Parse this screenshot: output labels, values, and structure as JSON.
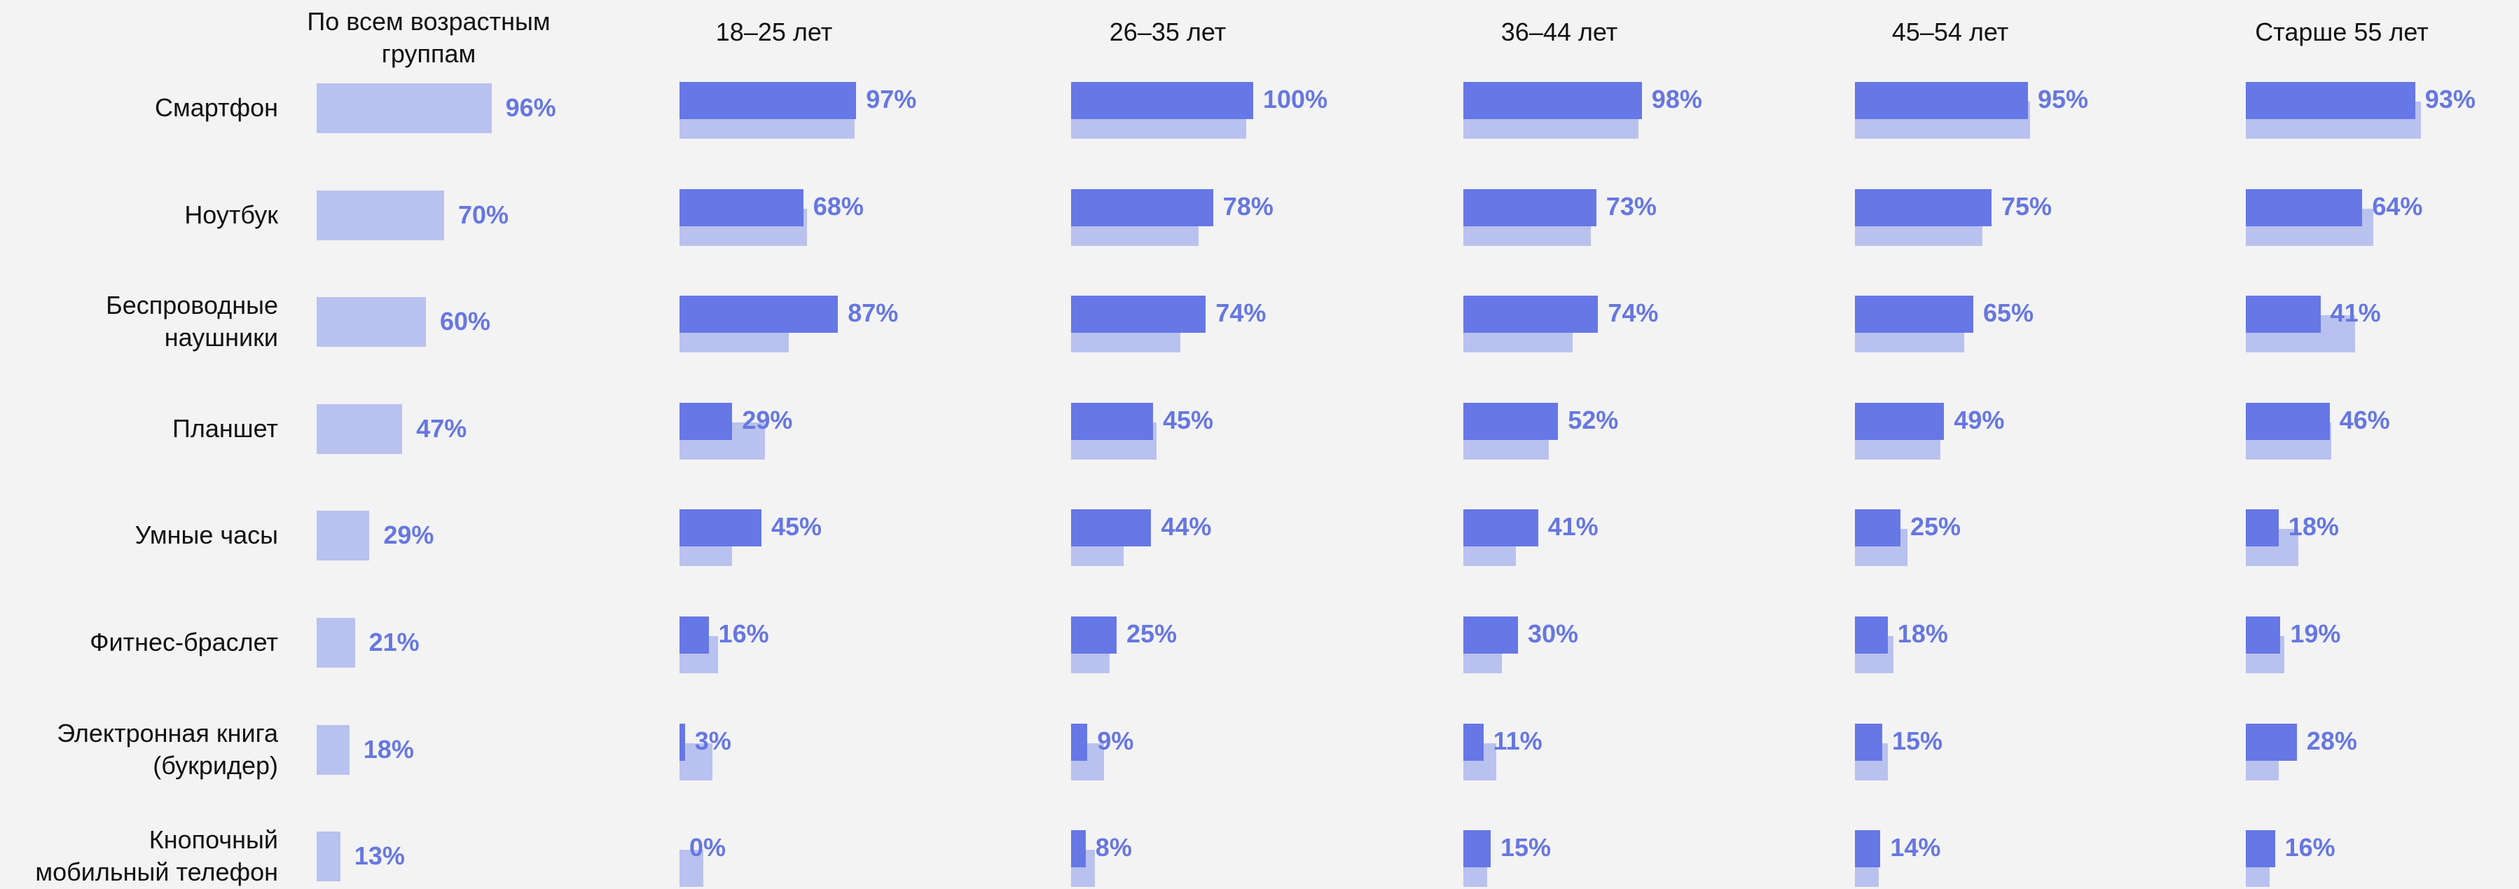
{
  "chart_data": {
    "type": "bar",
    "categories": [
      "Смартфон",
      "Ноутбук",
      "Беспроводные наушники",
      "Планшет",
      "Умные часы",
      "Фитнес-браслет",
      "Электронная книга (букридер)",
      "Кнопочный мобильный телефон"
    ],
    "series": [
      {
        "name": "По всем возрастным группам",
        "color": "#b9c1ef",
        "values": [
          96,
          70,
          60,
          47,
          29,
          21,
          18,
          13
        ],
        "value_labels": [
          "96%",
          "70%",
          "60%",
          "47%",
          "29%",
          "21%",
          "18%",
          "13%"
        ]
      },
      {
        "name": "18–25 лет",
        "color": "#6677e6",
        "values": [
          97,
          68,
          87,
          29,
          45,
          16,
          3,
          0
        ],
        "value_labels": [
          "97%",
          "68%",
          "87%",
          "29%",
          "45%",
          "16%",
          "3%",
          "0%"
        ]
      },
      {
        "name": "26–35 лет",
        "color": "#6677e6",
        "values": [
          100,
          78,
          74,
          45,
          44,
          25,
          9,
          8
        ],
        "value_labels": [
          "100%",
          "78%",
          "74%",
          "45%",
          "44%",
          "25%",
          "9%",
          "8%"
        ]
      },
      {
        "name": "36–44 лет",
        "color": "#6677e6",
        "values": [
          98,
          73,
          74,
          52,
          41,
          30,
          11,
          15
        ],
        "value_labels": [
          "98%",
          "73%",
          "74%",
          "52%",
          "41%",
          "30%",
          "11%",
          "15%"
        ]
      },
      {
        "name": "45–54 лет",
        "color": "#6677e6",
        "values": [
          95,
          75,
          65,
          49,
          25,
          18,
          15,
          14
        ],
        "value_labels": [
          "95%",
          "75%",
          "65%",
          "49%",
          "25%",
          "18%",
          "15%",
          "14%"
        ]
      },
      {
        "name": "Старше 55 лет",
        "color": "#6677e6",
        "values": [
          93,
          64,
          41,
          46,
          18,
          19,
          28,
          16
        ],
        "value_labels": [
          "93%",
          "64%",
          "41%",
          "46%",
          "18%",
          "19%",
          "28%",
          "16%"
        ]
      }
    ]
  }
}
